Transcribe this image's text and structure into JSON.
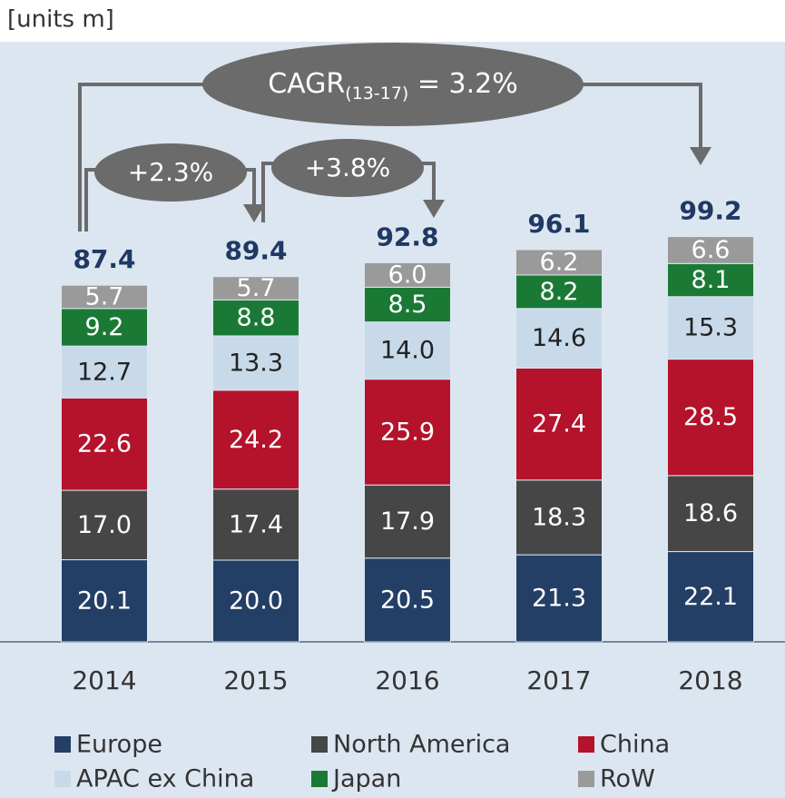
{
  "chart_data": {
    "type": "stacked_bar",
    "unit_label": "[units m]",
    "categories": [
      "2014",
      "2015",
      "2016",
      "2017",
      "2018"
    ],
    "series": [
      {
        "name": "Europe",
        "color": "#243f66",
        "values": [
          20.1,
          20.0,
          20.5,
          21.3,
          22.1
        ]
      },
      {
        "name": "North America",
        "color": "#464646",
        "values": [
          17.0,
          17.4,
          17.9,
          18.3,
          18.6
        ]
      },
      {
        "name": "China",
        "color": "#b5122b",
        "values": [
          22.6,
          24.2,
          25.9,
          27.4,
          28.5
        ]
      },
      {
        "name": "APAC ex China",
        "color": "#c8d9ea",
        "values": [
          12.7,
          13.3,
          14.0,
          14.6,
          15.3
        ]
      },
      {
        "name": "Japan",
        "color": "#1a7a35",
        "values": [
          9.2,
          8.8,
          8.5,
          8.2,
          8.1
        ]
      },
      {
        "name": "RoW",
        "color": "#9a9a9a",
        "values": [
          5.7,
          5.7,
          6.0,
          6.2,
          6.6
        ]
      }
    ],
    "value_labels": [
      [
        "20.1",
        "20.0",
        "20.5",
        "21.3",
        "22.1"
      ],
      [
        "17.0",
        "17.4",
        "17.9",
        "18.3",
        "18.6"
      ],
      [
        "22.6",
        "24.2",
        "25.9",
        "27.4",
        "28.5"
      ],
      [
        "12.7",
        "13.3",
        "14.0",
        "14.6",
        "15.3"
      ],
      [
        "9.2",
        "8.8",
        "8.5",
        "8.2",
        "8.1"
      ],
      [
        "5.7",
        "5.7",
        "6.0",
        "6.2",
        "6.6"
      ]
    ],
    "totals": [
      87.4,
      89.4,
      92.8,
      96.1,
      99.2
    ],
    "annotations": {
      "cagr": {
        "text": "CAGR",
        "sub": "(13-17)",
        "suffix": " = 3.2%"
      },
      "growth_2015": "+2.3%",
      "growth_2016": "+3.8%"
    }
  }
}
